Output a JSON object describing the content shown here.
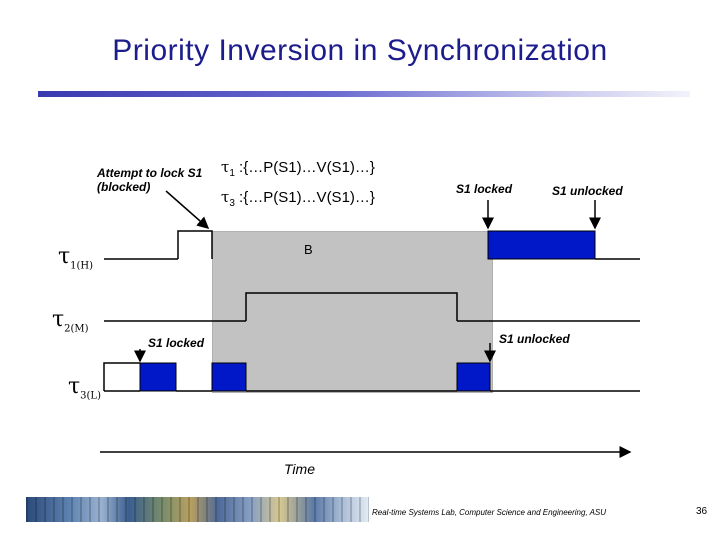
{
  "title": "Priority Inversion in Synchronization",
  "annotations": {
    "attempt_lock": "Attempt to lock S1 (blocked)",
    "s1_locked_top": "S1 locked",
    "s1_unlocked_top": "S1 unlocked",
    "s1_locked_mid": "S1 locked",
    "s1_unlocked_mid": "S1 unlocked",
    "blocked_region": "B",
    "time_axis": "Time"
  },
  "task_code": {
    "t1": {
      "symbol": "τ",
      "sub": "1",
      "code": " :{…P(S1)…V(S1)…}"
    },
    "t3": {
      "symbol": "τ",
      "sub": "3",
      "code": " :{…P(S1)…V(S1)…}"
    }
  },
  "tasks": [
    {
      "symbol": "τ",
      "sub": "1(H)"
    },
    {
      "symbol": "τ",
      "sub": "2(M)"
    },
    {
      "symbol": "τ",
      "sub": "3(L)"
    }
  ],
  "colors": {
    "title": "#1c1c8c",
    "lock_block": "#0018c8",
    "blocked_region": "#c2c2c2"
  },
  "footer": {
    "lab": "Real-time Systems Lab, Computer Science and Engineering, ASU",
    "page": "36"
  }
}
